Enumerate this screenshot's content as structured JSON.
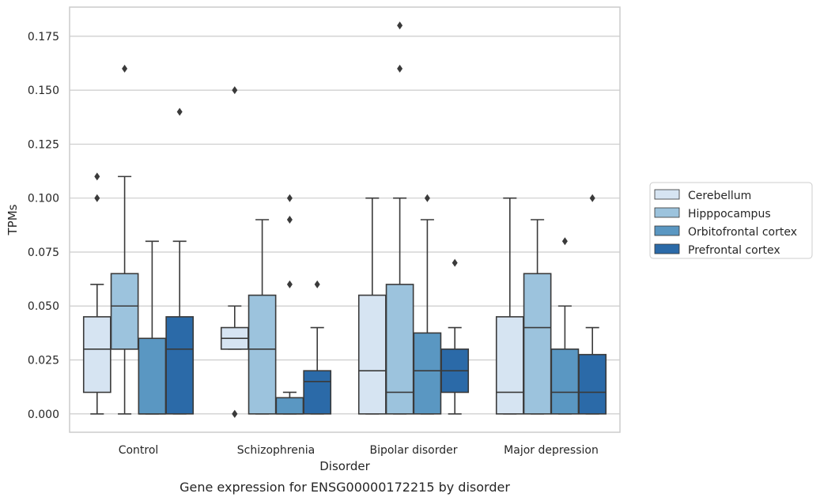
{
  "chart_data": {
    "type": "box",
    "title": "Gene expression for ENSG00000172215 by disorder",
    "xlabel": "Disorder",
    "ylabel": "TPMs",
    "ylim": [
      -0.0085,
      0.1885
    ],
    "yticks": [
      "0.000",
      "0.025",
      "0.050",
      "0.075",
      "0.100",
      "0.125",
      "0.150",
      "0.175"
    ],
    "grid": true,
    "legend_position": "right",
    "categories": [
      "Control",
      "Schizophrenia",
      "Bipolar disorder",
      "Major depression"
    ],
    "series": [
      {
        "name": "Cerebellum",
        "color": "#d6e4f2",
        "boxes": [
          {
            "whislo": 0.0,
            "q1": 0.01,
            "med": 0.03,
            "q3": 0.045,
            "whishi": 0.06,
            "fliers": [
              0.1,
              0.11
            ]
          },
          {
            "whislo": 0.03,
            "q1": 0.03,
            "med": 0.035,
            "q3": 0.04,
            "whishi": 0.05,
            "fliers": [
              0.0,
              0.0,
              0.15
            ]
          },
          {
            "whislo": 0.0,
            "q1": 0.0,
            "med": 0.02,
            "q3": 0.055,
            "whishi": 0.1,
            "fliers": []
          },
          {
            "whislo": 0.0,
            "q1": 0.0,
            "med": 0.01,
            "q3": 0.045,
            "whishi": 0.1,
            "fliers": []
          }
        ]
      },
      {
        "name": "Hipppocampus",
        "color": "#9cc3dd",
        "boxes": [
          {
            "whislo": 0.0,
            "q1": 0.03,
            "med": 0.05,
            "q3": 0.065,
            "whishi": 0.11,
            "fliers": [
              0.16
            ]
          },
          {
            "whislo": 0.0,
            "q1": 0.0,
            "med": 0.03,
            "q3": 0.055,
            "whishi": 0.09,
            "fliers": []
          },
          {
            "whislo": 0.0,
            "q1": 0.0,
            "med": 0.01,
            "q3": 0.06,
            "whishi": 0.1,
            "fliers": [
              0.16,
              0.18
            ]
          },
          {
            "whislo": 0.0,
            "q1": 0.0,
            "med": 0.04,
            "q3": 0.065,
            "whishi": 0.09,
            "fliers": []
          }
        ]
      },
      {
        "name": "Orbitofrontal cortex",
        "color": "#5a97c2",
        "boxes": [
          {
            "whislo": 0.0,
            "q1": 0.0,
            "med": 0.0,
            "q3": 0.035,
            "whishi": 0.08,
            "fliers": []
          },
          {
            "whislo": 0.0,
            "q1": 0.0,
            "med": 0.0,
            "q3": 0.0075,
            "whishi": 0.01,
            "fliers": [
              0.06,
              0.09,
              0.1
            ]
          },
          {
            "whislo": 0.0,
            "q1": 0.0,
            "med": 0.02,
            "q3": 0.0375,
            "whishi": 0.09,
            "fliers": [
              0.1
            ]
          },
          {
            "whislo": 0.0,
            "q1": 0.0,
            "med": 0.01,
            "q3": 0.03,
            "whishi": 0.05,
            "fliers": [
              0.08
            ]
          }
        ]
      },
      {
        "name": "Prefrontal cortex",
        "color": "#2b6aa8",
        "boxes": [
          {
            "whislo": 0.0,
            "q1": 0.0,
            "med": 0.03,
            "q3": 0.045,
            "whishi": 0.08,
            "fliers": [
              0.14
            ]
          },
          {
            "whislo": 0.0,
            "q1": 0.0,
            "med": 0.015,
            "q3": 0.02,
            "whishi": 0.04,
            "fliers": [
              0.06
            ]
          },
          {
            "whislo": 0.0,
            "q1": 0.01,
            "med": 0.02,
            "q3": 0.03,
            "whishi": 0.04,
            "fliers": [
              0.07
            ]
          },
          {
            "whislo": 0.0,
            "q1": 0.0,
            "med": 0.01,
            "q3": 0.0275,
            "whishi": 0.04,
            "fliers": [
              0.1
            ]
          }
        ]
      }
    ]
  }
}
